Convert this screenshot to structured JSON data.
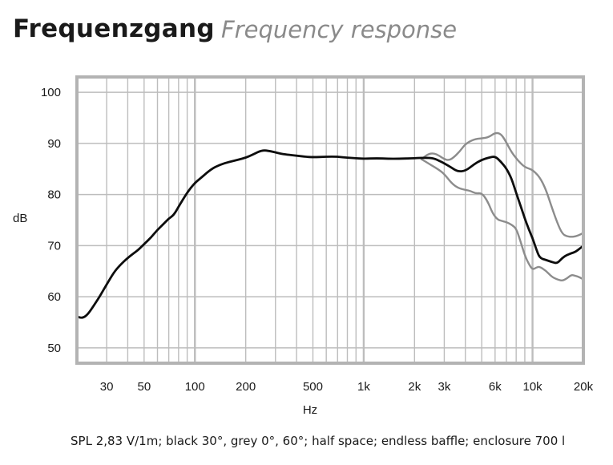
{
  "header": {
    "title": "Frequenzgang",
    "subtitle": "Frequency response"
  },
  "caption": "SPL 2,83 V/1m; black 30°, grey 0°, 60°; half space; endless baffle; enclosure 700 l",
  "colors": {
    "black_series": "#0d0d0d",
    "grey_series": "#8c8c8c",
    "grid": "#bdbdbd",
    "frame": "#b3b3b3"
  },
  "chart_data": {
    "type": "line",
    "xscale": "log",
    "xlim": [
      20,
      20000
    ],
    "ylim": [
      47,
      103
    ],
    "xlabel": "Hz",
    "ylabel": "dB",
    "grid": true,
    "xticks": [
      {
        "value": 30,
        "label": "30"
      },
      {
        "value": 50,
        "label": "50"
      },
      {
        "value": 100,
        "label": "100"
      },
      {
        "value": 200,
        "label": "200"
      },
      {
        "value": 500,
        "label": "500"
      },
      {
        "value": 1000,
        "label": "1k"
      },
      {
        "value": 2000,
        "label": "2k"
      },
      {
        "value": 3000,
        "label": "3k"
      },
      {
        "value": 6000,
        "label": "6k"
      },
      {
        "value": 10000,
        "label": "10k"
      },
      {
        "value": 20000,
        "label": "20k"
      }
    ],
    "yticks": [
      {
        "value": 50,
        "label": "50"
      },
      {
        "value": 60,
        "label": "60"
      },
      {
        "value": 70,
        "label": "70"
      },
      {
        "value": 80,
        "label": "80"
      },
      {
        "value": 90,
        "label": "90"
      },
      {
        "value": 100,
        "label": "100"
      }
    ],
    "series": [
      {
        "key": "black",
        "x": [
          20,
          21.5,
          23,
          25,
          27,
          30,
          33,
          36,
          40,
          43,
          46,
          50,
          55,
          60,
          65,
          70,
          75,
          80,
          90,
          100,
          110,
          125,
          140,
          160,
          180,
          200,
          220,
          250,
          280,
          320,
          350,
          400,
          450,
          500,
          600,
          700,
          800,
          900,
          1000,
          1200,
          1400,
          1600,
          2000,
          2300,
          2600,
          2800,
          3000,
          3300,
          3600,
          4000,
          4500,
          5000,
          5500,
          6000,
          6500,
          7000,
          7500,
          8000,
          8500,
          9000,
          9500,
          10000,
          10500,
          11000,
          12000,
          13000,
          14000,
          15000,
          16000,
          17000,
          18000,
          19000,
          20000
        ],
        "y": [
          56.1,
          55.8,
          56.4,
          58.1,
          59.8,
          62.4,
          64.7,
          66.2,
          67.6,
          68.4,
          69.1,
          70.3,
          71.6,
          73.1,
          74.2,
          75.3,
          76.0,
          77.6,
          80.4,
          82.3,
          83.4,
          85.0,
          85.8,
          86.4,
          86.8,
          87.2,
          87.8,
          88.7,
          88.5,
          88.0,
          87.8,
          87.6,
          87.4,
          87.3,
          87.4,
          87.4,
          87.2,
          87.1,
          87.0,
          87.1,
          87.0,
          87.0,
          87.1,
          87.2,
          87.1,
          86.6,
          86.1,
          85.3,
          84.5,
          84.6,
          85.9,
          86.8,
          87.2,
          87.5,
          86.4,
          85.1,
          83.2,
          80.3,
          77.8,
          75.3,
          73.2,
          71.5,
          69.4,
          67.6,
          67.2,
          66.8,
          66.5,
          67.6,
          68.2,
          68.5,
          68.8,
          69.4,
          70.0
        ]
      },
      {
        "key": "grey-0",
        "x": [
          2200,
          2400,
          2600,
          2800,
          3000,
          3200,
          3400,
          3700,
          4000,
          4500,
          5000,
          5500,
          6000,
          6500,
          7000,
          7500,
          8000,
          8500,
          9000,
          9500,
          10000,
          11000,
          12000,
          13000,
          14000,
          15000,
          16000,
          17000,
          18000,
          19000,
          20000
        ],
        "y": [
          86.9,
          87.9,
          88.1,
          87.6,
          86.9,
          86.7,
          87.2,
          88.4,
          89.9,
          90.8,
          91.0,
          91.2,
          92.1,
          91.9,
          90.2,
          88.3,
          87.1,
          86.1,
          85.4,
          85.1,
          84.8,
          83.5,
          81.0,
          77.5,
          74.5,
          72.3,
          71.8,
          71.7,
          71.8,
          72.1,
          72.5
        ]
      },
      {
        "key": "grey-60",
        "x": [
          2200,
          2500,
          2800,
          3000,
          3300,
          3600,
          4000,
          4300,
          4600,
          5000,
          5400,
          5800,
          6200,
          6600,
          7000,
          7500,
          8000,
          8500,
          9000,
          9500,
          10000,
          10500,
          11000,
          12000,
          13000,
          14000,
          15000,
          16000,
          17000,
          18000,
          19000,
          20000
        ],
        "y": [
          86.9,
          85.8,
          84.8,
          84.0,
          82.3,
          81.3,
          80.9,
          80.7,
          80.2,
          80.3,
          78.8,
          76.3,
          75.1,
          74.8,
          74.6,
          74.1,
          73.4,
          70.8,
          68.1,
          66.4,
          65.3,
          65.7,
          65.9,
          65.1,
          63.9,
          63.4,
          63.1,
          63.6,
          64.3,
          64.1,
          63.8,
          63.4
        ]
      }
    ]
  }
}
